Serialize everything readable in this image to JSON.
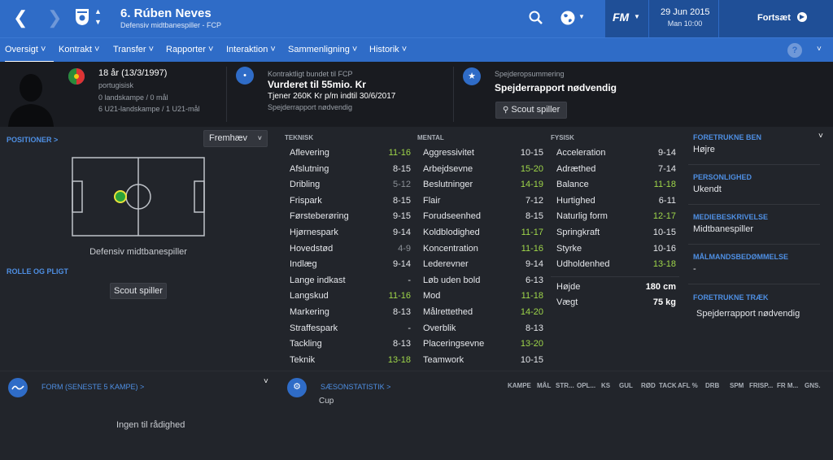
{
  "topbar": {
    "player_number_name": "6. Rúben Neves",
    "player_subtitle": "Defensiv midtbanespiller - FCP",
    "logo": "FM",
    "date": "29 Jun 2015",
    "time": "Man 10:00",
    "continue_label": "Fortsæt"
  },
  "nav": {
    "tabs": [
      "Oversigt",
      "Kontrakt",
      "Transfer",
      "Rapporter",
      "Interaktion",
      "Sammenligning",
      "Historik"
    ]
  },
  "profile": {
    "age": "18 år (13/3/1997)",
    "nationality": "portugisisk",
    "caps": "0 landskampe / 0 mål",
    "u21": "6 U21-landskampe / 1 U21-mål"
  },
  "contract": {
    "label": "Kontraktligt bundet til FCP",
    "value": "Vurderet til 55mio. Kr",
    "wage": "Tjener 260K Kr p/m indtil 30/6/2017",
    "note": "Spejderrapport nødvendig"
  },
  "scout": {
    "label": "Spejderopsummering",
    "value": "Spejderrapport nødvendig",
    "button": "Scout spiller"
  },
  "positions": {
    "label": "POSITIONER >",
    "dropdown": "Fremhæv",
    "position_name": "Defensiv midtbanespiller",
    "role_label": "ROLLE OG PLIGT",
    "scout_button": "Scout spiller"
  },
  "attributes": {
    "technical_title": "TEKNISK",
    "mental_title": "MENTAL",
    "physical_title": "FYSISK",
    "technical": [
      {
        "name": "Aflevering",
        "value": "11-16",
        "hl": true
      },
      {
        "name": "Afslutning",
        "value": "8-15",
        "hl": false
      },
      {
        "name": "Dribling",
        "value": "5-12",
        "hl": false,
        "grey": true
      },
      {
        "name": "Frispark",
        "value": "8-15",
        "hl": false
      },
      {
        "name": "Førsteberøring",
        "value": "9-15",
        "hl": false
      },
      {
        "name": "Hjørnespark",
        "value": "9-14",
        "hl": false
      },
      {
        "name": "Hovedstød",
        "value": "4-9",
        "hl": false,
        "grey": true
      },
      {
        "name": "Indlæg",
        "value": "9-14",
        "hl": false
      },
      {
        "name": "Lange indkast",
        "value": "-",
        "hl": false
      },
      {
        "name": "Langskud",
        "value": "11-16",
        "hl": true
      },
      {
        "name": "Markering",
        "value": "8-13",
        "hl": false
      },
      {
        "name": "Straffespark",
        "value": "-",
        "hl": false
      },
      {
        "name": "Tackling",
        "value": "8-13",
        "hl": false
      },
      {
        "name": "Teknik",
        "value": "13-18",
        "hl": true
      }
    ],
    "mental": [
      {
        "name": "Aggressivitet",
        "value": "10-15",
        "hl": false
      },
      {
        "name": "Arbejdsevne",
        "value": "15-20",
        "hl": true
      },
      {
        "name": "Beslutninger",
        "value": "14-19",
        "hl": true
      },
      {
        "name": "Flair",
        "value": "7-12",
        "hl": false
      },
      {
        "name": "Forudseenhed",
        "value": "8-15",
        "hl": false
      },
      {
        "name": "Koldblodighed",
        "value": "11-17",
        "hl": true
      },
      {
        "name": "Koncentration",
        "value": "11-16",
        "hl": true
      },
      {
        "name": "Lederevner",
        "value": "9-14",
        "hl": false
      },
      {
        "name": "Løb uden bold",
        "value": "6-13",
        "hl": false
      },
      {
        "name": "Mod",
        "value": "11-18",
        "hl": true
      },
      {
        "name": "Målrettethed",
        "value": "14-20",
        "hl": true
      },
      {
        "name": "Overblik",
        "value": "8-13",
        "hl": false
      },
      {
        "name": "Placeringsevne",
        "value": "13-20",
        "hl": true
      },
      {
        "name": "Teamwork",
        "value": "10-15",
        "hl": false
      }
    ],
    "physical": [
      {
        "name": "Acceleration",
        "value": "9-14",
        "hl": false
      },
      {
        "name": "Adræthed",
        "value": "7-14",
        "hl": false
      },
      {
        "name": "Balance",
        "value": "11-18",
        "hl": true
      },
      {
        "name": "Hurtighed",
        "value": "6-11",
        "hl": false
      },
      {
        "name": "Naturlig form",
        "value": "12-17",
        "hl": true
      },
      {
        "name": "Springkraft",
        "value": "10-15",
        "hl": false
      },
      {
        "name": "Styrke",
        "value": "10-16",
        "hl": false
      },
      {
        "name": "Udholdenhed",
        "value": "13-18",
        "hl": true
      }
    ],
    "height_label": "Højde",
    "height": "180 cm",
    "weight_label": "Vægt",
    "weight": "75 kg"
  },
  "side": {
    "foot_label": "FORETRUKNE BEN",
    "foot": "Højre",
    "personality_label": "PERSONLIGHED",
    "personality": "Ukendt",
    "media_label": "MEDIEBESKRIVELSE",
    "media": "Midtbanespiller",
    "goalman_label": "MÅLMANDSBEDØMMELSE",
    "goalman": "-",
    "moves_label": "FORETRUKNE TRÆK",
    "moves": "Spejderrapport nødvendig"
  },
  "form": {
    "label": "FORM (SENESTE 5 KAMPE) >",
    "empty": "Ingen til rådighed"
  },
  "season": {
    "label": "SÆSONSTATISTIK >",
    "cols": [
      "KAMPE",
      "MÅL",
      "STR...",
      "OPL...",
      "KS",
      "GUL",
      "RØD",
      "TACK",
      "AFL %",
      "DRB",
      "SPM",
      "FRISP...",
      "FR M...",
      "GNS."
    ],
    "row": "Cup"
  },
  "colors": {
    "blue": "#2f6cc7",
    "green": "#9fd64a",
    "dark": "#191b20"
  }
}
